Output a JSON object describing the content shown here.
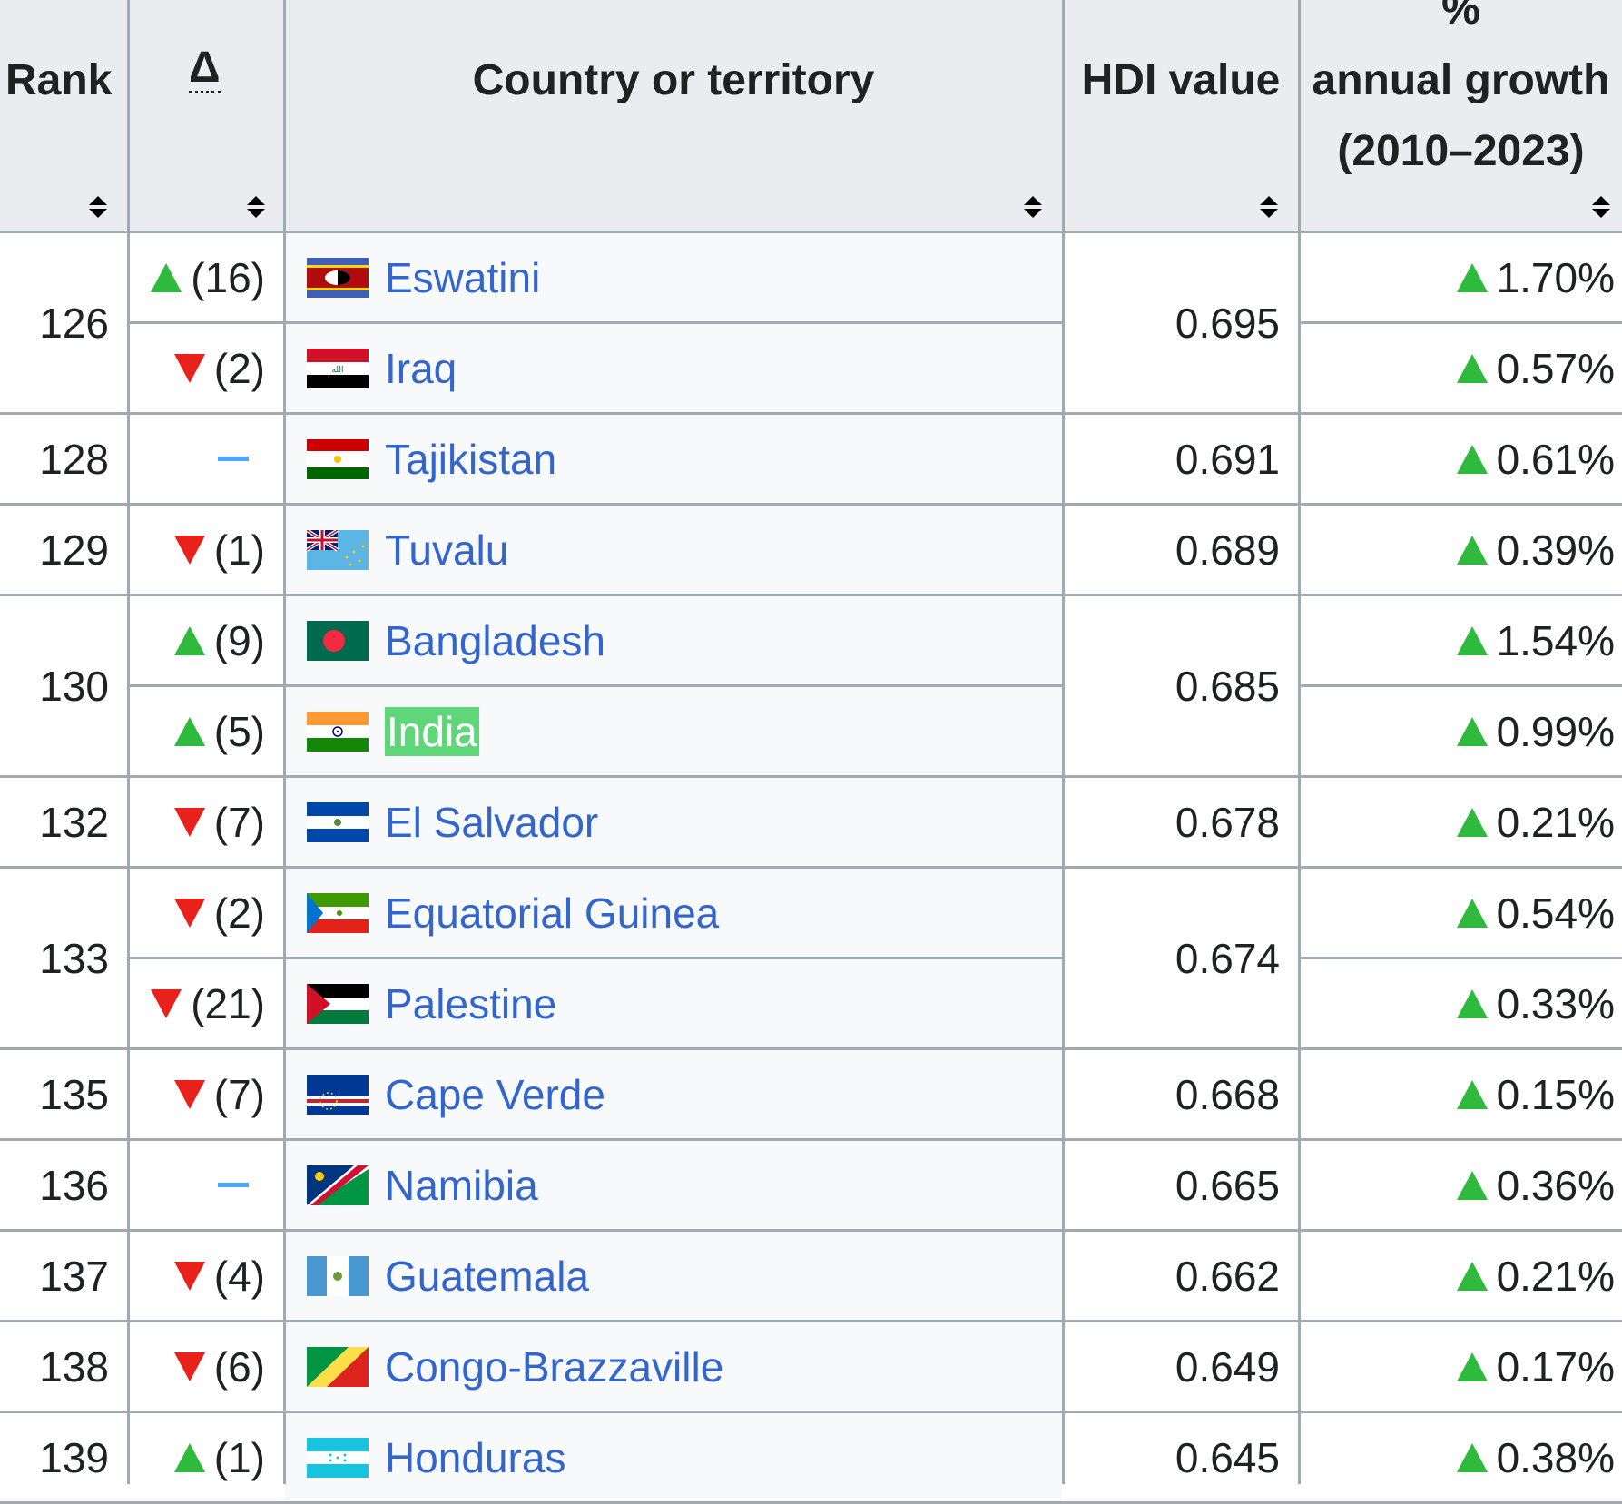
{
  "header": {
    "rank": "Rank",
    "delta": "Δ",
    "country": "Country or territory",
    "hdi": "HDI value",
    "growth_line1": "%",
    "growth_line2": "annual growth",
    "growth_line3": "(2010–2023)"
  },
  "colors": {
    "up": "#2fb93d",
    "down": "#e8221a",
    "same": "#4da6ff",
    "link": "#3366cc",
    "highlight": "#5fd67a"
  },
  "rows": [
    {
      "rank": "126",
      "delta_dir": "up",
      "delta": "(16)",
      "country": "Eswatini",
      "hdi": "0.695",
      "growth": "1.70%",
      "flag": "eswatini"
    },
    {
      "rank": "",
      "delta_dir": "down",
      "delta": "(2)",
      "country": "Iraq",
      "hdi": "",
      "growth": "0.57%",
      "flag": "iraq"
    },
    {
      "rank": "128",
      "delta_dir": "same",
      "delta": "",
      "country": "Tajikistan",
      "hdi": "0.691",
      "growth": "0.61%",
      "flag": "tajikistan"
    },
    {
      "rank": "129",
      "delta_dir": "down",
      "delta": "(1)",
      "country": "Tuvalu",
      "hdi": "0.689",
      "growth": "0.39%",
      "flag": "tuvalu"
    },
    {
      "rank": "130",
      "delta_dir": "up",
      "delta": "(9)",
      "country": "Bangladesh",
      "hdi": "0.685",
      "growth": "1.54%",
      "flag": "bangladesh"
    },
    {
      "rank": "",
      "delta_dir": "up",
      "delta": "(5)",
      "country": "India",
      "hdi": "",
      "growth": "0.99%",
      "flag": "india",
      "highlight": true
    },
    {
      "rank": "132",
      "delta_dir": "down",
      "delta": "(7)",
      "country": "El Salvador",
      "hdi": "0.678",
      "growth": "0.21%",
      "flag": "elsalvador"
    },
    {
      "rank": "133",
      "delta_dir": "down",
      "delta": "(2)",
      "country": "Equatorial Guinea",
      "hdi": "0.674",
      "growth": "0.54%",
      "flag": "eqguinea"
    },
    {
      "rank": "",
      "delta_dir": "down",
      "delta": "(21)",
      "country": "Palestine",
      "hdi": "",
      "growth": "0.33%",
      "flag": "palestine"
    },
    {
      "rank": "135",
      "delta_dir": "down",
      "delta": "(7)",
      "country": "Cape Verde",
      "hdi": "0.668",
      "growth": "0.15%",
      "flag": "capeverde"
    },
    {
      "rank": "136",
      "delta_dir": "same",
      "delta": "",
      "country": "Namibia",
      "hdi": "0.665",
      "growth": "0.36%",
      "flag": "namibia"
    },
    {
      "rank": "137",
      "delta_dir": "down",
      "delta": "(4)",
      "country": "Guatemala",
      "hdi": "0.662",
      "growth": "0.21%",
      "flag": "guatemala"
    },
    {
      "rank": "138",
      "delta_dir": "down",
      "delta": "(6)",
      "country": "Congo-Brazzaville",
      "hdi": "0.649",
      "growth": "0.17%",
      "flag": "congo"
    },
    {
      "rank": "139",
      "delta_dir": "up",
      "delta": "(1)",
      "country": "Honduras",
      "hdi": "0.645",
      "growth": "0.38%",
      "flag": "honduras"
    }
  ]
}
